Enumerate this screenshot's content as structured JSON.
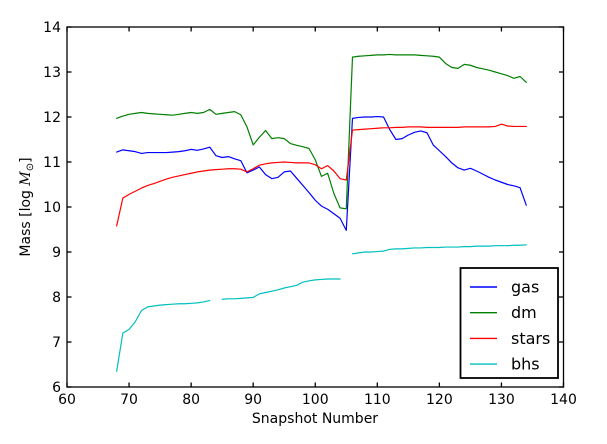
{
  "figure": {
    "background": "#ffffff",
    "plot_background": "#ffffff",
    "axis_color": "#000000"
  },
  "chart_data": {
    "type": "line",
    "title": "",
    "xlabel": "Snapshot Number",
    "ylabel": "Mass [log M⊙]",
    "ylabel_parts": {
      "prefix": "Mass [log ",
      "math_symbol": "M",
      "subscript": "⊙",
      "suffix": "]"
    },
    "xlim": [
      60,
      140
    ],
    "ylim": [
      6,
      14
    ],
    "x_ticks": [
      60,
      70,
      80,
      90,
      100,
      110,
      120,
      130,
      140
    ],
    "y_ticks": [
      6,
      7,
      8,
      9,
      10,
      11,
      12,
      13,
      14
    ],
    "grid": false,
    "legend_position": "lower right",
    "x": [
      68,
      69,
      70,
      71,
      72,
      73,
      74,
      75,
      76,
      77,
      78,
      79,
      80,
      81,
      82,
      83,
      84,
      85,
      86,
      87,
      88,
      89,
      90,
      91,
      92,
      93,
      94,
      95,
      96,
      97,
      98,
      99,
      100,
      101,
      102,
      103,
      104,
      105,
      106,
      107,
      108,
      109,
      110,
      111,
      112,
      113,
      114,
      115,
      116,
      117,
      118,
      119,
      120,
      121,
      122,
      123,
      124,
      125,
      126,
      127,
      128,
      129,
      130,
      131,
      132,
      133,
      134
    ],
    "series": [
      {
        "name": "gas",
        "color": "#0000ff",
        "values": [
          11.22,
          11.27,
          11.25,
          11.23,
          11.19,
          11.21,
          11.21,
          11.21,
          11.21,
          11.22,
          11.23,
          11.25,
          11.28,
          11.26,
          11.29,
          11.33,
          11.14,
          11.1,
          11.12,
          11.07,
          11.03,
          10.76,
          10.82,
          10.89,
          10.72,
          10.63,
          10.66,
          10.78,
          10.8,
          10.64,
          10.48,
          10.32,
          10.15,
          10.02,
          9.95,
          9.85,
          9.75,
          9.48,
          11.97,
          11.99,
          12.0,
          12.0,
          12.01,
          12.0,
          11.72,
          11.5,
          11.52,
          11.6,
          11.66,
          11.69,
          11.65,
          11.38,
          11.25,
          11.12,
          10.98,
          10.87,
          10.82,
          10.86,
          10.8,
          10.73,
          10.66,
          10.6,
          10.55,
          10.5,
          10.47,
          10.43,
          10.04
        ]
      },
      {
        "name": "dm",
        "color": "#008000",
        "values": [
          11.97,
          12.02,
          12.06,
          12.08,
          12.1,
          12.08,
          12.07,
          12.06,
          12.05,
          12.04,
          12.06,
          12.08,
          12.1,
          12.08,
          12.1,
          12.17,
          12.06,
          12.08,
          12.1,
          12.12,
          12.05,
          11.78,
          11.38,
          11.55,
          11.7,
          11.52,
          11.54,
          11.52,
          11.41,
          11.37,
          11.34,
          11.3,
          11.05,
          10.68,
          10.75,
          10.3,
          9.98,
          9.96,
          13.33,
          13.35,
          13.36,
          13.37,
          13.38,
          13.38,
          13.39,
          13.38,
          13.38,
          13.38,
          13.38,
          13.37,
          13.36,
          13.35,
          13.33,
          13.19,
          13.1,
          13.08,
          13.17,
          13.15,
          13.1,
          13.07,
          13.04,
          13.0,
          12.96,
          12.92,
          12.86,
          12.9,
          12.77
        ]
      },
      {
        "name": "stars",
        "color": "#ff0000",
        "values": [
          9.58,
          10.2,
          10.28,
          10.35,
          10.42,
          10.48,
          10.52,
          10.57,
          10.62,
          10.66,
          10.69,
          10.72,
          10.75,
          10.78,
          10.8,
          10.82,
          10.83,
          10.84,
          10.85,
          10.85,
          10.84,
          10.78,
          10.85,
          10.93,
          10.96,
          10.98,
          10.99,
          11.0,
          10.99,
          10.98,
          10.98,
          10.98,
          10.94,
          10.85,
          10.92,
          10.8,
          10.63,
          10.6,
          11.71,
          11.72,
          11.73,
          11.74,
          11.75,
          11.76,
          11.76,
          11.77,
          11.77,
          11.78,
          11.78,
          11.78,
          11.77,
          11.77,
          11.77,
          11.77,
          11.77,
          11.77,
          11.78,
          11.78,
          11.78,
          11.78,
          11.78,
          11.79,
          11.84,
          11.8,
          11.79,
          11.79,
          11.79
        ]
      },
      {
        "name": "bhs",
        "color": "#00bfbf",
        "values": [
          6.35,
          7.2,
          7.28,
          7.45,
          7.7,
          7.78,
          7.8,
          7.82,
          7.83,
          7.84,
          7.85,
          7.85,
          7.86,
          7.87,
          7.89,
          7.92,
          null,
          7.95,
          7.96,
          7.96,
          7.97,
          7.98,
          7.99,
          8.07,
          8.1,
          8.13,
          8.16,
          8.2,
          8.23,
          8.26,
          8.33,
          8.36,
          8.38,
          8.39,
          8.4,
          8.4,
          8.4,
          null,
          8.96,
          8.98,
          9.0,
          9.0,
          9.01,
          9.02,
          9.06,
          9.07,
          9.07,
          9.08,
          9.09,
          9.09,
          9.1,
          9.1,
          9.1,
          9.11,
          9.11,
          9.11,
          9.12,
          9.12,
          9.13,
          9.13,
          9.13,
          9.14,
          9.14,
          9.14,
          9.15,
          9.15,
          9.16
        ]
      }
    ]
  },
  "legend": {
    "labels": [
      "gas",
      "dm",
      "stars",
      "bhs"
    ]
  }
}
